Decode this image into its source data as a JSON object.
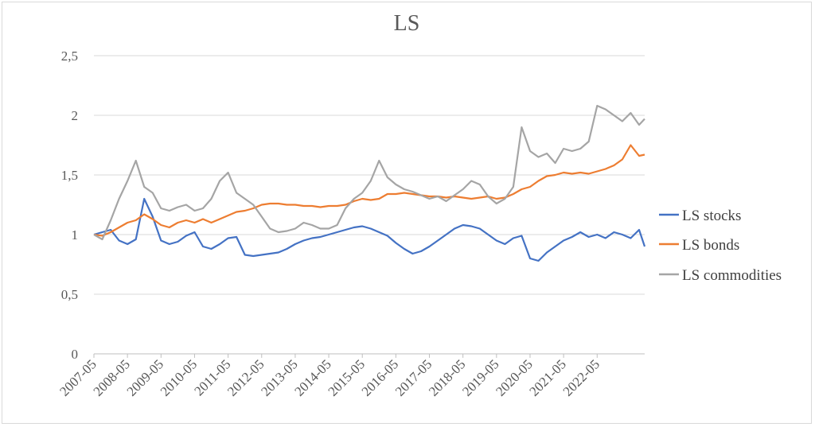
{
  "chart_data": {
    "type": "line",
    "title": "LS",
    "xlabel": "",
    "ylabel": "",
    "ylim": [
      0,
      2.5
    ],
    "yticks": [
      "0",
      "0,5",
      "1",
      "1,5",
      "2",
      "2,5"
    ],
    "ytick_values": [
      0,
      0.5,
      1,
      1.5,
      2,
      2.5
    ],
    "xticks": [
      "2007-05",
      "2008-05",
      "2009-05",
      "2010-05",
      "2011-05",
      "2012-05",
      "2013-05",
      "2014-05",
      "2015-05",
      "2016-05",
      "2017-05",
      "2018-05",
      "2019-05",
      "2020-05",
      "2021-05",
      "2022-05"
    ],
    "x_end": "2023-10",
    "grid": "horizontal",
    "legend_position": "right",
    "x": [
      "2007-05",
      "2007-08",
      "2007-11",
      "2008-02",
      "2008-05",
      "2008-08",
      "2008-11",
      "2009-02",
      "2009-05",
      "2009-08",
      "2009-11",
      "2010-02",
      "2010-05",
      "2010-08",
      "2010-11",
      "2011-02",
      "2011-05",
      "2011-08",
      "2011-11",
      "2012-02",
      "2012-05",
      "2012-08",
      "2012-11",
      "2013-02",
      "2013-05",
      "2013-08",
      "2013-11",
      "2014-02",
      "2014-05",
      "2014-08",
      "2014-11",
      "2015-02",
      "2015-05",
      "2015-08",
      "2015-11",
      "2016-02",
      "2016-05",
      "2016-08",
      "2016-11",
      "2017-02",
      "2017-05",
      "2017-08",
      "2017-11",
      "2018-02",
      "2018-05",
      "2018-08",
      "2018-11",
      "2019-02",
      "2019-05",
      "2019-08",
      "2019-11",
      "2020-02",
      "2020-05",
      "2020-08",
      "2020-11",
      "2021-02",
      "2021-05",
      "2021-08",
      "2021-11",
      "2022-02",
      "2022-05",
      "2022-08",
      "2022-11",
      "2023-02",
      "2023-05",
      "2023-08",
      "2023-10"
    ],
    "series": [
      {
        "name": "LS stocks",
        "color": "#4472c4",
        "values": [
          1.0,
          1.02,
          1.04,
          0.95,
          0.92,
          0.96,
          1.3,
          1.15,
          0.95,
          0.92,
          0.94,
          0.99,
          1.02,
          0.9,
          0.88,
          0.92,
          0.97,
          0.98,
          0.83,
          0.82,
          0.83,
          0.84,
          0.85,
          0.88,
          0.92,
          0.95,
          0.97,
          0.98,
          1.0,
          1.02,
          1.04,
          1.06,
          1.07,
          1.05,
          1.02,
          0.99,
          0.93,
          0.88,
          0.84,
          0.86,
          0.9,
          0.95,
          1.0,
          1.05,
          1.08,
          1.07,
          1.05,
          1.0,
          0.95,
          0.92,
          0.97,
          0.99,
          0.8,
          0.78,
          0.85,
          0.9,
          0.95,
          0.98,
          1.02,
          0.98,
          1.0,
          0.97,
          1.02,
          1.0,
          0.97,
          1.04,
          0.9
        ]
      },
      {
        "name": "LS bonds",
        "color": "#ed7d31",
        "values": [
          1.0,
          0.99,
          1.02,
          1.06,
          1.1,
          1.12,
          1.17,
          1.13,
          1.08,
          1.06,
          1.1,
          1.12,
          1.1,
          1.13,
          1.1,
          1.13,
          1.16,
          1.19,
          1.2,
          1.22,
          1.25,
          1.26,
          1.26,
          1.25,
          1.25,
          1.24,
          1.24,
          1.23,
          1.24,
          1.24,
          1.25,
          1.28,
          1.3,
          1.29,
          1.3,
          1.34,
          1.34,
          1.35,
          1.34,
          1.33,
          1.32,
          1.32,
          1.31,
          1.32,
          1.31,
          1.3,
          1.31,
          1.32,
          1.3,
          1.31,
          1.34,
          1.38,
          1.4,
          1.45,
          1.49,
          1.5,
          1.52,
          1.51,
          1.52,
          1.51,
          1.53,
          1.55,
          1.58,
          1.63,
          1.75,
          1.66,
          1.67
        ]
      },
      {
        "name": "LS commodities",
        "color": "#a5a5a5",
        "values": [
          1.0,
          0.96,
          1.12,
          1.3,
          1.45,
          1.62,
          1.4,
          1.35,
          1.22,
          1.2,
          1.23,
          1.25,
          1.2,
          1.22,
          1.3,
          1.45,
          1.52,
          1.35,
          1.3,
          1.25,
          1.15,
          1.05,
          1.02,
          1.03,
          1.05,
          1.1,
          1.08,
          1.05,
          1.05,
          1.08,
          1.22,
          1.3,
          1.35,
          1.45,
          1.62,
          1.48,
          1.42,
          1.38,
          1.36,
          1.33,
          1.3,
          1.32,
          1.28,
          1.33,
          1.38,
          1.45,
          1.42,
          1.32,
          1.26,
          1.3,
          1.4,
          1.9,
          1.7,
          1.65,
          1.68,
          1.6,
          1.72,
          1.7,
          1.72,
          1.78,
          2.08,
          2.05,
          2.0,
          1.95,
          2.02,
          1.92,
          1.97
        ]
      }
    ]
  }
}
